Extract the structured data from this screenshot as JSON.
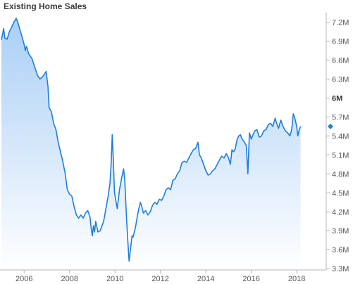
{
  "chart_data": {
    "type": "area",
    "title": "Existing Home Sales",
    "xlabel": "",
    "ylabel": "",
    "x_ticks": [
      "2006",
      "2008",
      "2010",
      "2012",
      "2014",
      "2016",
      "2018"
    ],
    "y_ticks": [
      "7.2M",
      "6.9M",
      "6.6M",
      "6.3M",
      "6M",
      "5.7M",
      "5.4M",
      "5.1M",
      "4.8M",
      "4.5M",
      "4.2M",
      "3.9M",
      "3.6M",
      "3.3M"
    ],
    "xlim": [
      2005.0,
      2019.3
    ],
    "ylim": [
      3.28,
      7.35
    ],
    "grid": false,
    "legend": "none",
    "colors": {
      "line": "#1e7fdc",
      "fill_top": "#aacff6",
      "fill_bottom": "#ffffff",
      "marker": "#1e7fdc"
    },
    "series": [
      {
        "unit": "M",
        "points": [
          [
            2005.0,
            6.92
          ],
          [
            2005.1,
            7.1
          ],
          [
            2005.15,
            6.95
          ],
          [
            2005.25,
            6.93
          ],
          [
            2005.35,
            7.05
          ],
          [
            2005.45,
            7.12
          ],
          [
            2005.55,
            7.2
          ],
          [
            2005.65,
            7.26
          ],
          [
            2005.72,
            7.2
          ],
          [
            2005.8,
            7.1
          ],
          [
            2005.9,
            6.98
          ],
          [
            2006.0,
            6.85
          ],
          [
            2006.05,
            6.75
          ],
          [
            2006.1,
            6.82
          ],
          [
            2006.2,
            6.7
          ],
          [
            2006.35,
            6.62
          ],
          [
            2006.5,
            6.45
          ],
          [
            2006.6,
            6.35
          ],
          [
            2006.7,
            6.3
          ],
          [
            2006.8,
            6.33
          ],
          [
            2006.9,
            6.38
          ],
          [
            2006.97,
            6.42
          ],
          [
            2007.05,
            6.18
          ],
          [
            2007.1,
            5.85
          ],
          [
            2007.2,
            5.78
          ],
          [
            2007.3,
            5.6
          ],
          [
            2007.4,
            5.5
          ],
          [
            2007.5,
            5.3
          ],
          [
            2007.6,
            5.15
          ],
          [
            2007.7,
            5.0
          ],
          [
            2007.8,
            4.82
          ],
          [
            2007.9,
            4.55
          ],
          [
            2008.0,
            4.48
          ],
          [
            2008.1,
            4.45
          ],
          [
            2008.2,
            4.28
          ],
          [
            2008.3,
            4.15
          ],
          [
            2008.4,
            4.1
          ],
          [
            2008.5,
            4.15
          ],
          [
            2008.6,
            4.1
          ],
          [
            2008.7,
            4.18
          ],
          [
            2008.8,
            4.22
          ],
          [
            2008.9,
            4.12
          ],
          [
            2008.95,
            3.95
          ],
          [
            2009.0,
            3.82
          ],
          [
            2009.05,
            3.98
          ],
          [
            2009.1,
            3.88
          ],
          [
            2009.15,
            4.05
          ],
          [
            2009.25,
            3.88
          ],
          [
            2009.35,
            3.9
          ],
          [
            2009.5,
            4.05
          ],
          [
            2009.6,
            4.25
          ],
          [
            2009.7,
            4.45
          ],
          [
            2009.78,
            4.65
          ],
          [
            2009.83,
            4.95
          ],
          [
            2009.88,
            5.42
          ],
          [
            2009.93,
            5.0
          ],
          [
            2009.98,
            4.5
          ],
          [
            2010.05,
            4.35
          ],
          [
            2010.1,
            4.25
          ],
          [
            2010.2,
            4.55
          ],
          [
            2010.3,
            4.75
          ],
          [
            2010.38,
            4.88
          ],
          [
            2010.43,
            4.7
          ],
          [
            2010.48,
            4.3
          ],
          [
            2010.53,
            3.95
          ],
          [
            2010.58,
            3.65
          ],
          [
            2010.62,
            3.42
          ],
          [
            2010.68,
            3.6
          ],
          [
            2010.75,
            3.82
          ],
          [
            2010.8,
            3.8
          ],
          [
            2010.9,
            3.95
          ],
          [
            2010.97,
            4.1
          ],
          [
            2011.05,
            4.25
          ],
          [
            2011.12,
            4.35
          ],
          [
            2011.18,
            4.28
          ],
          [
            2011.25,
            4.18
          ],
          [
            2011.35,
            4.22
          ],
          [
            2011.45,
            4.15
          ],
          [
            2011.55,
            4.2
          ],
          [
            2011.65,
            4.3
          ],
          [
            2011.75,
            4.35
          ],
          [
            2011.85,
            4.32
          ],
          [
            2011.95,
            4.4
          ],
          [
            2012.05,
            4.38
          ],
          [
            2012.15,
            4.45
          ],
          [
            2012.25,
            4.55
          ],
          [
            2012.35,
            4.58
          ],
          [
            2012.45,
            4.55
          ],
          [
            2012.55,
            4.7
          ],
          [
            2012.65,
            4.72
          ],
          [
            2012.75,
            4.8
          ],
          [
            2012.85,
            4.85
          ],
          [
            2012.95,
            4.98
          ],
          [
            2013.05,
            5.0
          ],
          [
            2013.15,
            4.98
          ],
          [
            2013.25,
            5.05
          ],
          [
            2013.35,
            5.12
          ],
          [
            2013.45,
            5.18
          ],
          [
            2013.55,
            5.2
          ],
          [
            2013.65,
            5.3
          ],
          [
            2013.72,
            5.1
          ],
          [
            2013.8,
            5.05
          ],
          [
            2013.9,
            4.95
          ],
          [
            2014.0,
            4.85
          ],
          [
            2014.1,
            4.78
          ],
          [
            2014.2,
            4.8
          ],
          [
            2014.3,
            4.85
          ],
          [
            2014.4,
            4.88
          ],
          [
            2014.5,
            4.95
          ],
          [
            2014.6,
            5.02
          ],
          [
            2014.7,
            5.08
          ],
          [
            2014.8,
            5.05
          ],
          [
            2014.9,
            5.12
          ],
          [
            2015.0,
            5.05
          ],
          [
            2015.08,
            4.95
          ],
          [
            2015.15,
            5.18
          ],
          [
            2015.22,
            5.15
          ],
          [
            2015.3,
            5.2
          ],
          [
            2015.38,
            5.35
          ],
          [
            2015.45,
            5.4
          ],
          [
            2015.52,
            5.42
          ],
          [
            2015.6,
            5.35
          ],
          [
            2015.7,
            5.3
          ],
          [
            2015.78,
            5.25
          ],
          [
            2015.85,
            4.8
          ],
          [
            2015.92,
            5.45
          ],
          [
            2016.0,
            5.35
          ],
          [
            2016.08,
            5.42
          ],
          [
            2016.15,
            5.48
          ],
          [
            2016.25,
            5.5
          ],
          [
            2016.35,
            5.38
          ],
          [
            2016.45,
            5.4
          ],
          [
            2016.55,
            5.48
          ],
          [
            2016.65,
            5.5
          ],
          [
            2016.75,
            5.58
          ],
          [
            2016.85,
            5.6
          ],
          [
            2016.95,
            5.55
          ],
          [
            2017.05,
            5.68
          ],
          [
            2017.12,
            5.6
          ],
          [
            2017.2,
            5.52
          ],
          [
            2017.3,
            5.65
          ],
          [
            2017.4,
            5.55
          ],
          [
            2017.5,
            5.48
          ],
          [
            2017.6,
            5.45
          ],
          [
            2017.7,
            5.4
          ],
          [
            2017.78,
            5.5
          ],
          [
            2017.85,
            5.75
          ],
          [
            2017.92,
            5.68
          ],
          [
            2018.0,
            5.55
          ],
          [
            2018.05,
            5.4
          ],
          [
            2018.1,
            5.48
          ],
          [
            2018.17,
            5.55
          ]
        ]
      }
    ],
    "last_value_marker": 5.55
  }
}
